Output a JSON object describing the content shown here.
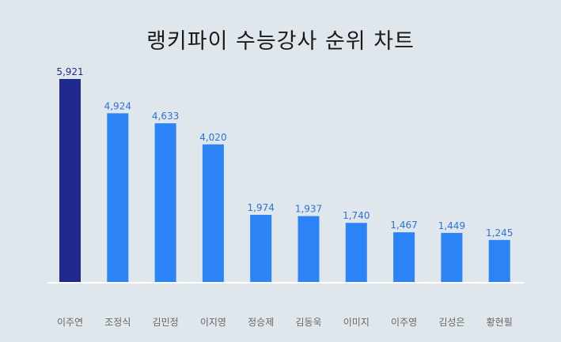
{
  "chart_data": {
    "type": "bar",
    "title": "랭키파이 수능강사 순위 차트",
    "categories": [
      "이주연",
      "조정식",
      "김민정",
      "이지영",
      "정승제",
      "김동욱",
      "이미지",
      "이주영",
      "김성은",
      "황현필"
    ],
    "values": [
      5921,
      4924,
      4633,
      4020,
      1974,
      1937,
      1740,
      1467,
      1449,
      1245
    ],
    "value_labels": [
      "5,921",
      "4,924",
      "4,633",
      "4,020",
      "1,974",
      "1,937",
      "1,740",
      "1,467",
      "1,449",
      "1,245"
    ],
    "highlight_index": 0,
    "colors": {
      "highlight_bar": "#1f2a8c",
      "bar": "#2b83f6",
      "highlight_label": "#1f2a8c",
      "label": "#2b73d6",
      "baseline": "#ffffff"
    },
    "grid": false,
    "legend": "none"
  }
}
